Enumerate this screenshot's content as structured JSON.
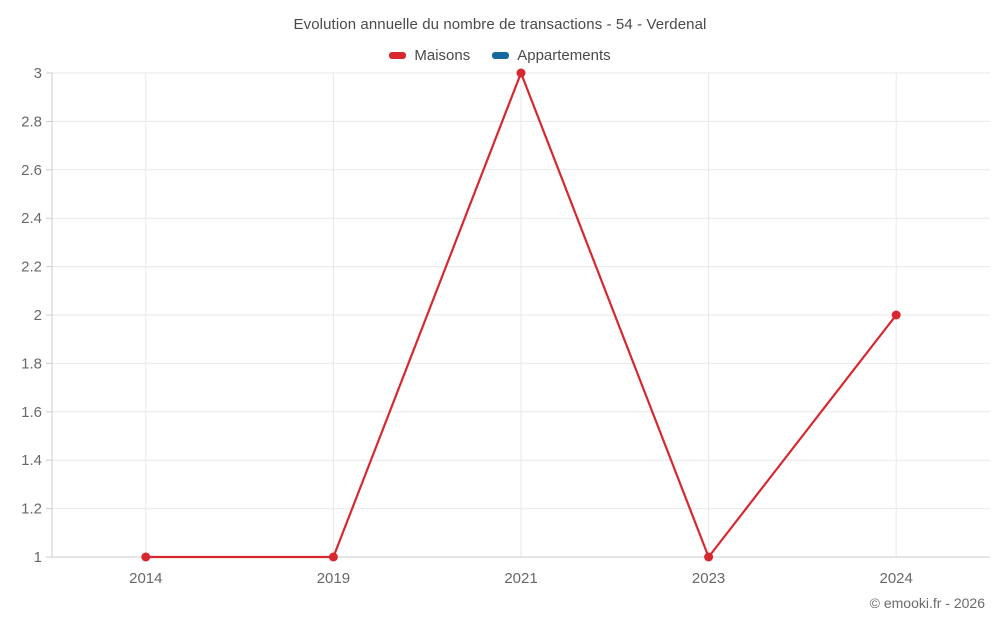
{
  "chart_data": {
    "type": "line",
    "title": "Evolution annuelle du nombre de transactions - 54 - Verdenal",
    "categories": [
      "2014",
      "2019",
      "2021",
      "2023",
      "2024"
    ],
    "series": [
      {
        "name": "Maisons",
        "color": "#d7282f",
        "values": [
          1,
          1,
          3,
          1,
          2
        ]
      },
      {
        "name": "Appartements",
        "color": "#17689e",
        "values": []
      }
    ],
    "ylim": [
      1,
      3
    ],
    "ytick_step": 0.2,
    "ytick_labels": [
      "3",
      "2.8",
      "2.6",
      "2.4",
      "2.2",
      "2",
      "1.8",
      "1.6",
      "1.4",
      "1.2",
      "1"
    ],
    "grid": true,
    "legend_position": "top",
    "marker_radius": 4.5,
    "line_width": 2.2
  },
  "style": {
    "grid_color": "#e9e9e9",
    "axis_color": "#cccccc",
    "tick_label_color": "#686868"
  },
  "footer": {
    "copyright": "© emooki.fr - 2026"
  }
}
